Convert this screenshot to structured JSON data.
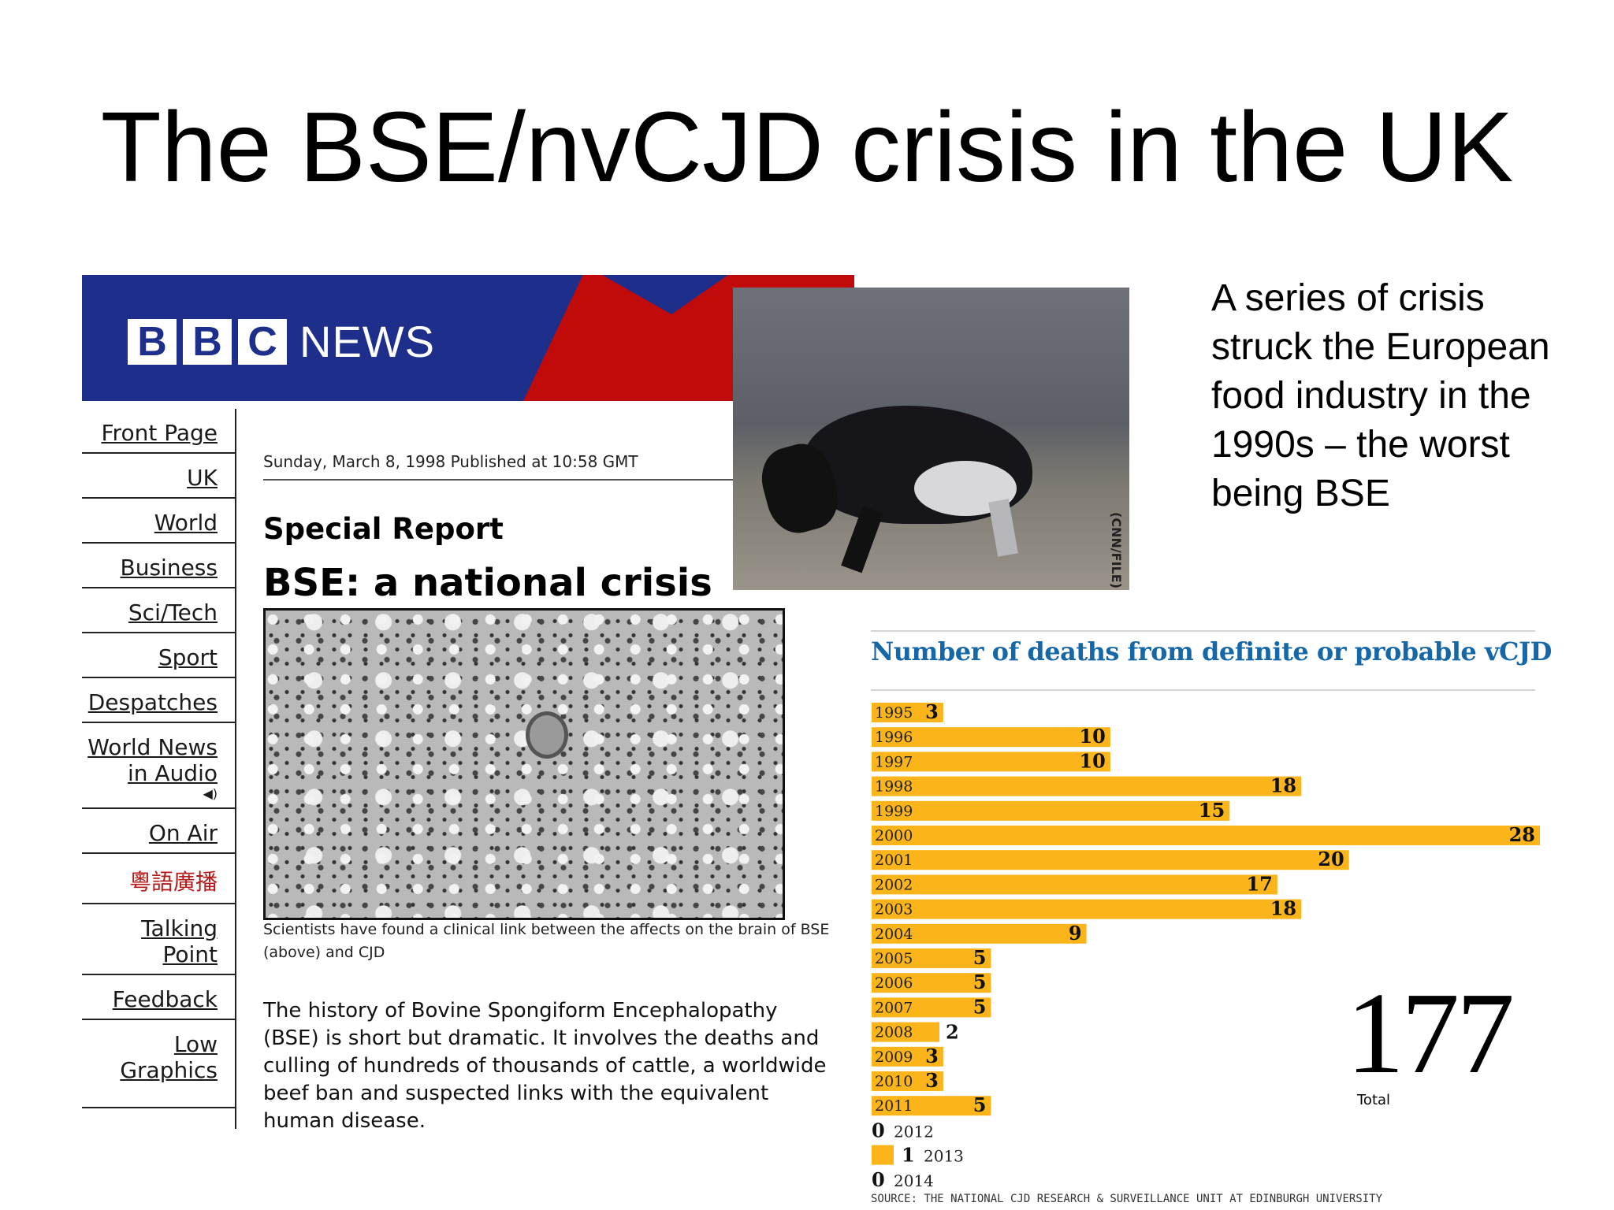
{
  "slide": {
    "title": "The BSE/nvCJD crisis in the UK",
    "side_text": "A series of crisis struck the European food industry in the 1990s – the worst being BSE"
  },
  "bbc": {
    "logo_letters": [
      "B",
      "B",
      "C"
    ],
    "logo_news": "NEWS",
    "nav": [
      "Front Page",
      "UK",
      "World",
      "Business",
      "Sci/Tech",
      "Sport",
      "Despatches",
      "World News in Audio",
      "On Air",
      "粵語廣播",
      "Talking Point",
      "Feedback",
      "Low Graphics"
    ],
    "dateline": "Sunday, March 8, 1998 Published at 10:58 GMT",
    "special_report": "Special Report",
    "headline": "BSE: a national crisis",
    "caption": "Scientists have found a clinical link between the affects on the brain of BSE (above) and CJD",
    "body": "The history of Bovine Spongiform Encephalopathy (BSE) is short but dramatic. It involves the deaths and culling of hundreds of thousands of cattle, a worldwide beef ban and suspected links with the equivalent human disease.",
    "photo_credit": "(CNN/FILE)"
  },
  "chart_data": {
    "type": "bar",
    "title": "Number of deaths from definite or probable vCJD",
    "categories": [
      "1995",
      "1996",
      "1997",
      "1998",
      "1999",
      "2000",
      "2001",
      "2002",
      "2003",
      "2004",
      "2005",
      "2006",
      "2007",
      "2008",
      "2009",
      "2010",
      "2011",
      "2012",
      "2013",
      "2014"
    ],
    "values": [
      3,
      10,
      10,
      18,
      15,
      28,
      20,
      17,
      18,
      9,
      5,
      5,
      5,
      2,
      3,
      3,
      5,
      0,
      1,
      0
    ],
    "orientation": "horizontal",
    "xlim": [
      0,
      28
    ],
    "bar_color": "#fbb41a",
    "total_value": "177",
    "total_label": "Total",
    "source": "SOURCE: THE NATIONAL CJD RESEARCH & SURVEILLANCE UNIT AT EDINBURGH UNIVERSITY"
  }
}
